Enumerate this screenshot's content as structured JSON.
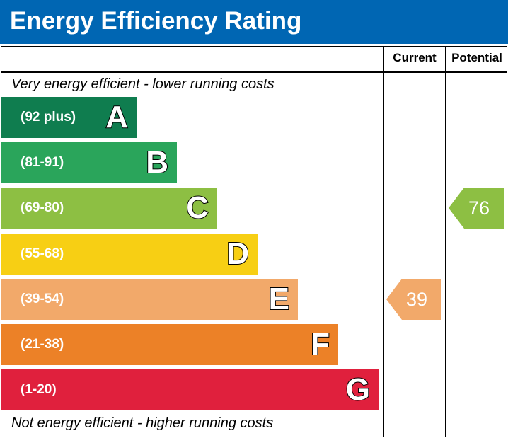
{
  "title": "Energy Efficiency Rating",
  "columns": {
    "current": "Current",
    "potential": "Potential"
  },
  "top_note": "Very energy efficient - lower running costs",
  "bottom_note": "Not energy efficient - higher running costs",
  "chart_data": {
    "type": "bar",
    "categories": [
      "A",
      "B",
      "C",
      "D",
      "E",
      "F",
      "G"
    ],
    "ranges": [
      "(92 plus)",
      "(81-91)",
      "(69-80)",
      "(55-68)",
      "(39-54)",
      "(21-38)",
      "(1-20)"
    ],
    "colors": [
      "#0f7d4f",
      "#2aa55b",
      "#8dbf43",
      "#f7cf14",
      "#f2a96a",
      "#ec8127",
      "#e0203d"
    ],
    "current": {
      "value": 39,
      "band": "E",
      "color": "#f2a96a"
    },
    "potential": {
      "value": 76,
      "band": "C",
      "color": "#8dbf43"
    }
  }
}
